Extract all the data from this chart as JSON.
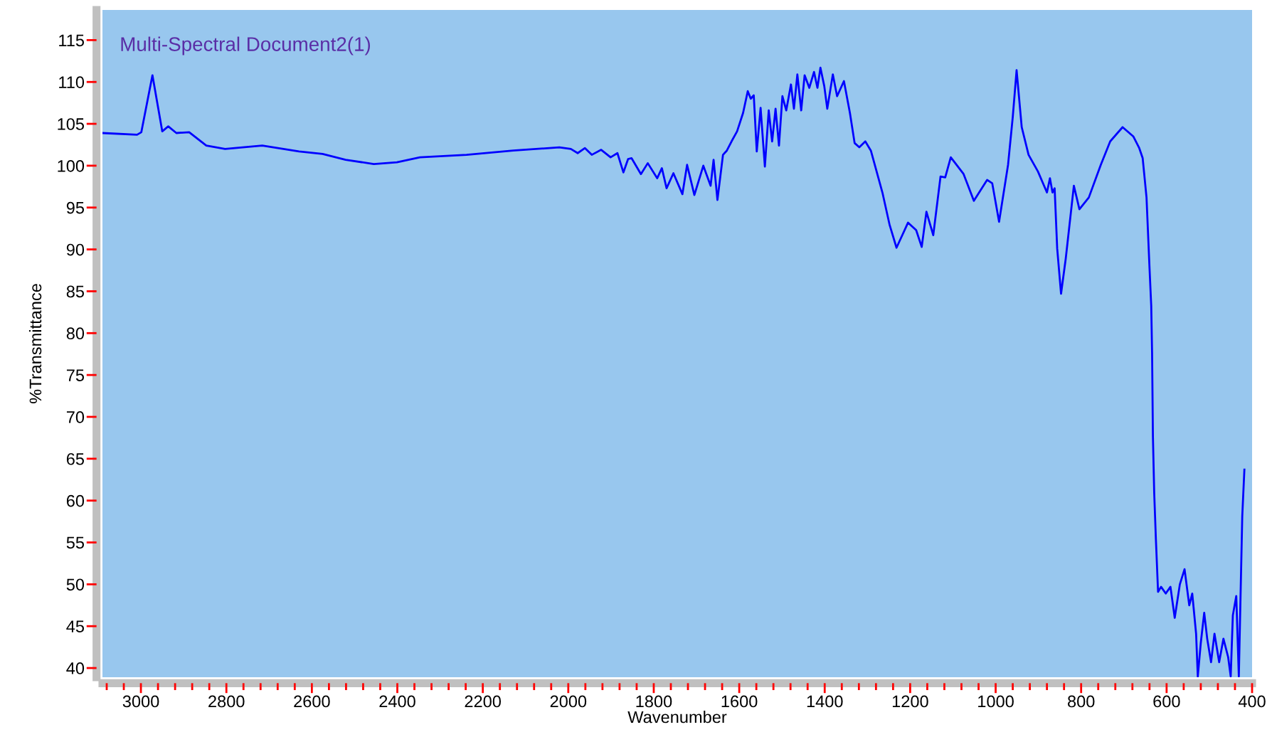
{
  "chart_data": {
    "type": "line",
    "title": "Multi-Spectral Document2(1)",
    "xlabel": "Wavenumber",
    "ylabel": "%Transmittance",
    "xlim": [
      3090,
      400
    ],
    "ylim": [
      38.9,
      118.6
    ],
    "xticks": [
      3000,
      2800,
      2600,
      2400,
      2200,
      2000,
      1800,
      1600,
      1400,
      1200,
      1000,
      800,
      600,
      400,
      {
        "value": 3080,
        "label": null
      },
      {
        "value": 3040,
        "label": null
      },
      {
        "value": 2960,
        "label": null
      },
      {
        "value": 2920,
        "label": null
      },
      {
        "value": 2880,
        "label": null
      },
      {
        "value": 2840,
        "label": null
      },
      {
        "value": 2760,
        "label": null
      },
      {
        "value": 2720,
        "label": null
      },
      {
        "value": 2680,
        "label": null
      },
      {
        "value": 2640,
        "label": null
      },
      {
        "value": 2560,
        "label": null
      },
      {
        "value": 2520,
        "label": null
      },
      {
        "value": 2480,
        "label": null
      },
      {
        "value": 2440,
        "label": null
      },
      {
        "value": 2360,
        "label": null
      },
      {
        "value": 2320,
        "label": null
      },
      {
        "value": 2280,
        "label": null
      },
      {
        "value": 2240,
        "label": null
      },
      {
        "value": 2160,
        "label": null
      },
      {
        "value": 2120,
        "label": null
      },
      {
        "value": 2080,
        "label": null
      },
      {
        "value": 2040,
        "label": null
      },
      {
        "value": 1960,
        "label": null
      },
      {
        "value": 1920,
        "label": null
      },
      {
        "value": 1880,
        "label": null
      },
      {
        "value": 1840,
        "label": null
      },
      {
        "value": 1760,
        "label": null
      },
      {
        "value": 1720,
        "label": null
      },
      {
        "value": 1680,
        "label": null
      },
      {
        "value": 1640,
        "label": null
      },
      {
        "value": 1560,
        "label": null
      },
      {
        "value": 1520,
        "label": null
      },
      {
        "value": 1480,
        "label": null
      },
      {
        "value": 1440,
        "label": null
      },
      {
        "value": 1360,
        "label": null
      },
      {
        "value": 1320,
        "label": null
      },
      {
        "value": 1280,
        "label": null
      },
      {
        "value": 1240,
        "label": null
      },
      {
        "value": 1160,
        "label": null
      },
      {
        "value": 1120,
        "label": null
      },
      {
        "value": 1080,
        "label": null
      },
      {
        "value": 1040,
        "label": null
      },
      {
        "value": 960,
        "label": null
      },
      {
        "value": 920,
        "label": null
      },
      {
        "value": 880,
        "label": null
      },
      {
        "value": 840,
        "label": null
      },
      {
        "value": 760,
        "label": null
      },
      {
        "value": 720,
        "label": null
      },
      {
        "value": 680,
        "label": null
      },
      {
        "value": 640,
        "label": null
      },
      {
        "value": 560,
        "label": null
      },
      {
        "value": 520,
        "label": null
      },
      {
        "value": 480,
        "label": null
      },
      {
        "value": 440,
        "label": null
      }
    ],
    "yticks": [
      40,
      45,
      50,
      55,
      60,
      65,
      70,
      75,
      80,
      85,
      90,
      95,
      100,
      105,
      110,
      115
    ],
    "marker": "none",
    "line_style": "solid",
    "series": [
      {
        "color": "#0000ff",
        "x": [
          3090,
          3009,
          2999,
          2973,
          2950,
          2936,
          2917,
          2887,
          2847,
          2803,
          2716,
          2630,
          2575,
          2521,
          2455,
          2401,
          2347,
          2238,
          2129,
          2021,
          1994,
          1978,
          1961,
          1945,
          1923,
          1901,
          1885,
          1871,
          1860,
          1852,
          1830,
          1814,
          1792,
          1781,
          1770,
          1754,
          1733,
          1722,
          1705,
          1684,
          1667,
          1660,
          1651,
          1638,
          1629,
          1618,
          1605,
          1591,
          1580,
          1573,
          1566,
          1559,
          1550,
          1540,
          1531,
          1523,
          1515,
          1507,
          1499,
          1490,
          1479,
          1472,
          1464,
          1455,
          1447,
          1436,
          1425,
          1417,
          1410,
          1401,
          1394,
          1381,
          1371,
          1355,
          1341,
          1330,
          1319,
          1305,
          1292,
          1265,
          1248,
          1232,
          1205,
          1186,
          1173,
          1162,
          1146,
          1129,
          1118,
          1105,
          1075,
          1051,
          1020,
          1008,
          992,
          971,
          960,
          951,
          939,
          923,
          901,
          880,
          873,
          867,
          862,
          856,
          847,
          836,
          817,
          804,
          782,
          754,
          732,
          703,
          678,
          664,
          656,
          647,
          640,
          636,
          634,
          632,
          629,
          625,
          620,
          613,
          602,
          591,
          581,
          569,
          558,
          547,
          540,
          531,
          527,
          520,
          512,
          505,
          496,
          488,
          477,
          467,
          456,
          450,
          445,
          437,
          431,
          423,
          418
        ],
        "values": [
          103.9,
          103.7,
          104.0,
          110.8,
          104.1,
          104.7,
          103.9,
          104.0,
          102.4,
          102.0,
          102.4,
          101.7,
          101.4,
          100.7,
          100.2,
          100.4,
          101.0,
          101.3,
          101.8,
          102.2,
          102.0,
          101.5,
          102.1,
          101.3,
          101.9,
          101.0,
          101.5,
          99.2,
          100.8,
          100.9,
          99.0,
          100.3,
          98.5,
          99.7,
          97.3,
          99.1,
          96.6,
          100.1,
          96.5,
          100.0,
          97.6,
          100.7,
          95.9,
          101.3,
          101.8,
          102.9,
          104.1,
          106.3,
          108.9,
          108.0,
          108.4,
          101.7,
          106.9,
          99.9,
          106.6,
          102.9,
          106.8,
          102.4,
          108.3,
          106.6,
          109.7,
          106.8,
          110.9,
          106.6,
          110.8,
          109.3,
          111.2,
          109.3,
          111.7,
          109.5,
          106.8,
          110.9,
          108.3,
          110.1,
          106.3,
          102.7,
          102.2,
          102.9,
          101.8,
          96.8,
          92.9,
          90.2,
          93.2,
          92.3,
          90.3,
          94.5,
          91.7,
          98.7,
          98.6,
          101.0,
          99.0,
          95.8,
          98.3,
          97.9,
          93.3,
          100.1,
          105.8,
          111.4,
          104.6,
          101.3,
          99.3,
          96.8,
          98.5,
          96.8,
          97.3,
          90.1,
          84.7,
          88.9,
          97.6,
          94.8,
          96.2,
          100.1,
          102.9,
          104.6,
          103.5,
          102.1,
          100.9,
          96.2,
          87.8,
          83.3,
          77.7,
          67.6,
          60.9,
          55.3,
          49.1,
          49.7,
          48.9,
          49.7,
          46.0,
          50.0,
          51.8,
          47.5,
          48.9,
          44.1,
          39.0,
          43.0,
          46.6,
          43.5,
          40.7,
          44.1,
          40.7,
          43.5,
          41.3,
          39.0,
          46.3,
          48.6,
          39.0,
          58.1,
          63.7
        ]
      }
    ]
  }
}
